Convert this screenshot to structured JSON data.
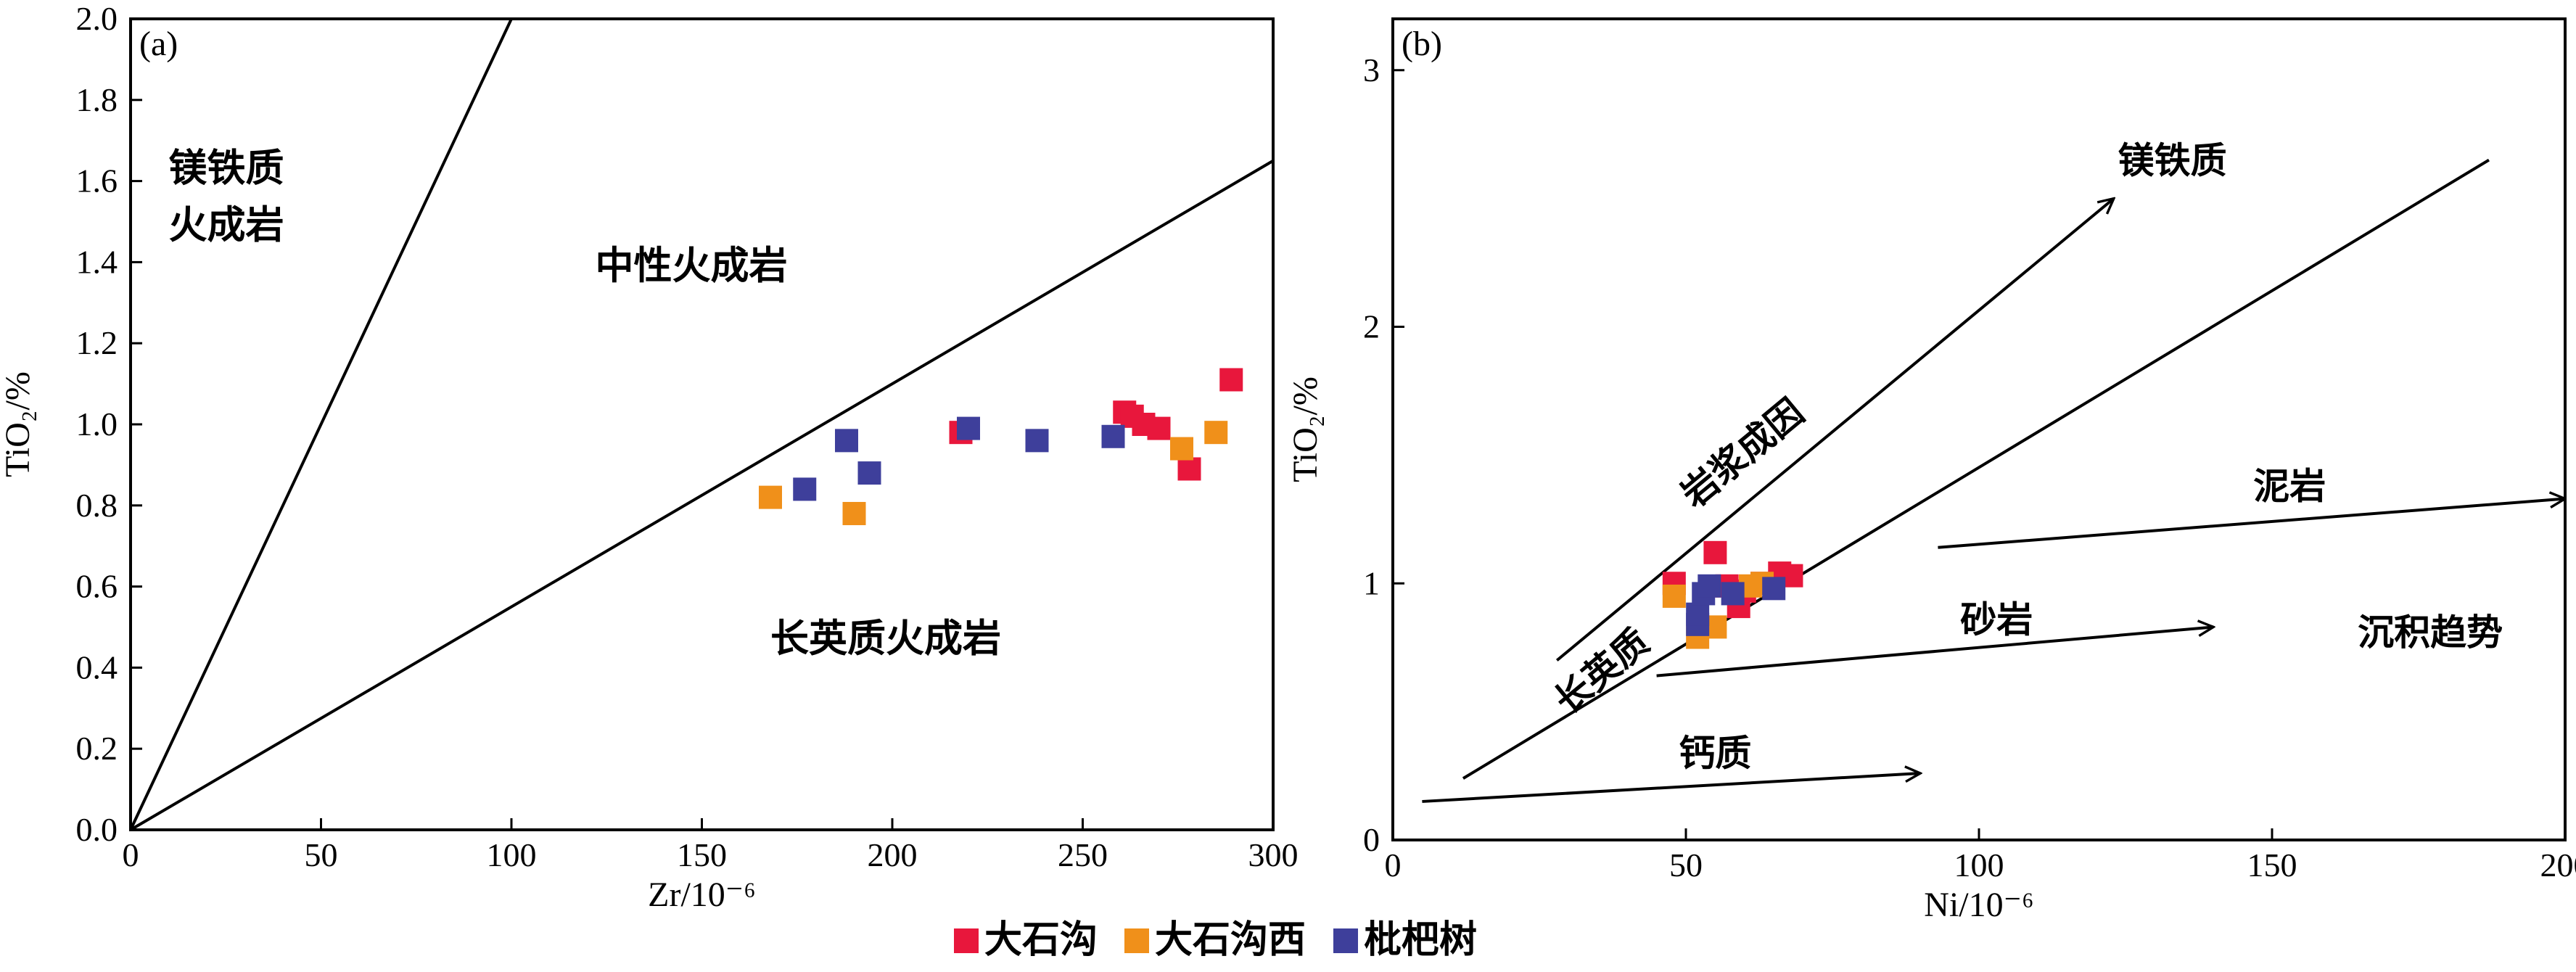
{
  "colors": {
    "red": "#e8173c",
    "orange": "#f0901a",
    "navy": "#3e3f9b",
    "ink": "#000000"
  },
  "legend": [
    {
      "key": "red",
      "label": "大石沟"
    },
    {
      "key": "orange",
      "label": "大石沟西"
    },
    {
      "key": "navy",
      "label": "枇杷树"
    }
  ],
  "chart_data": [
    {
      "panel": "(a)",
      "type": "scatter",
      "xlabel": "Zr/10⁻⁶",
      "ylabel": "TiO₂/%",
      "xlim": [
        0,
        300
      ],
      "ylim": [
        0,
        2.0
      ],
      "xticks": [
        "0",
        "50",
        "100",
        "150",
        "200",
        "250",
        "300"
      ],
      "yticks": [
        "0.0",
        "0.2",
        "0.4",
        "0.6",
        "0.8",
        "1.0",
        "1.2",
        "1.4",
        "1.6",
        "1.8",
        "2.0"
      ],
      "boundaries": [
        {
          "from": [
            0,
            0
          ],
          "to": [
            100,
            2.0
          ]
        },
        {
          "from": [
            0,
            0
          ],
          "to": [
            300,
            1.65
          ]
        }
      ],
      "regions": [
        {
          "text": "镁铁质",
          "at": [
            10,
            1.6
          ]
        },
        {
          "text": "火成岩",
          "at": [
            10,
            1.46
          ]
        },
        {
          "text": "中性火成岩",
          "at": [
            122,
            1.36
          ]
        },
        {
          "text": "长英质火成岩",
          "at": [
            168,
            0.44
          ]
        }
      ],
      "series": [
        {
          "name": "大石沟",
          "color": "red",
          "points": [
            [
              218,
              0.98
            ],
            [
              261,
              1.03
            ],
            [
              263,
              1.02
            ],
            [
              266,
              1.0
            ],
            [
              270,
              0.99
            ],
            [
              278,
              0.89
            ],
            [
              289,
              1.11
            ]
          ]
        },
        {
          "name": "大石沟西",
          "color": "orange",
          "points": [
            [
              168,
              0.82
            ],
            [
              190,
              0.78
            ],
            [
              276,
              0.94
            ],
            [
              285,
              0.98
            ]
          ]
        },
        {
          "name": "枇杷树",
          "color": "navy",
          "points": [
            [
              177,
              0.84
            ],
            [
              188,
              0.96
            ],
            [
              194,
              0.88
            ],
            [
              220,
              0.99
            ],
            [
              238,
              0.96
            ],
            [
              258,
              0.97
            ]
          ]
        }
      ]
    },
    {
      "panel": "(b)",
      "type": "scatter",
      "xlabel": "Ni/10⁻⁶",
      "ylabel": "TiO₂/%",
      "xlim": [
        0,
        200
      ],
      "ylim": [
        0,
        3.2
      ],
      "xticks": [
        "0",
        "50",
        "100",
        "150",
        "200"
      ],
      "yticks": [
        "0",
        "1",
        "2",
        "3"
      ],
      "lines": [
        {
          "from": [
            28,
            0.7
          ],
          "to": [
            123,
            2.5
          ],
          "arrow": true
        },
        {
          "from": [
            12,
            0.24
          ],
          "to": [
            187,
            2.65
          ],
          "arrow": false
        },
        {
          "from": [
            45,
            0.64
          ],
          "to": [
            140,
            0.83
          ],
          "arrow": true
        },
        {
          "from": [
            93,
            1.14
          ],
          "to": [
            200,
            1.33
          ],
          "arrow": true
        },
        {
          "from": [
            5,
            0.15
          ],
          "to": [
            90,
            0.26
          ],
          "arrow": true
        }
      ],
      "labels": [
        {
          "text": "镁铁质",
          "at": [
            133,
            2.6
          ],
          "rotate": false
        },
        {
          "text": "岩浆成因",
          "at": [
            61,
            1.47
          ],
          "rotate": true
        },
        {
          "text": "长英质",
          "at": [
            37,
            0.62
          ],
          "rotate": true
        },
        {
          "text": "泥岩",
          "at": [
            153,
            1.33
          ],
          "rotate": false
        },
        {
          "text": "砂岩",
          "at": [
            103,
            0.81
          ],
          "rotate": false
        },
        {
          "text": "沉积趋势",
          "at": [
            177,
            0.76
          ],
          "rotate": false
        },
        {
          "text": "钙质",
          "at": [
            55,
            0.29
          ],
          "rotate": false
        }
      ],
      "series": [
        {
          "name": "大石沟",
          "color": "red",
          "points": [
            [
              48,
              1.0
            ],
            [
              55,
              1.12
            ],
            [
              57,
              0.99
            ],
            [
              59,
              0.91
            ],
            [
              60,
              0.97
            ],
            [
              63,
              1.0
            ],
            [
              66,
              1.04
            ],
            [
              68,
              1.03
            ]
          ]
        },
        {
          "name": "大石沟西",
          "color": "orange",
          "points": [
            [
              48,
              0.95
            ],
            [
              52,
              0.79
            ],
            [
              55,
              0.83
            ],
            [
              61,
              0.99
            ],
            [
              63,
              1.0
            ]
          ]
        },
        {
          "name": "枇杷树",
          "color": "navy",
          "points": [
            [
              52,
              0.84
            ],
            [
              52,
              0.88
            ],
            [
              53,
              0.96
            ],
            [
              54,
              0.99
            ],
            [
              58,
              0.96
            ],
            [
              65,
              0.98
            ]
          ]
        }
      ]
    }
  ]
}
